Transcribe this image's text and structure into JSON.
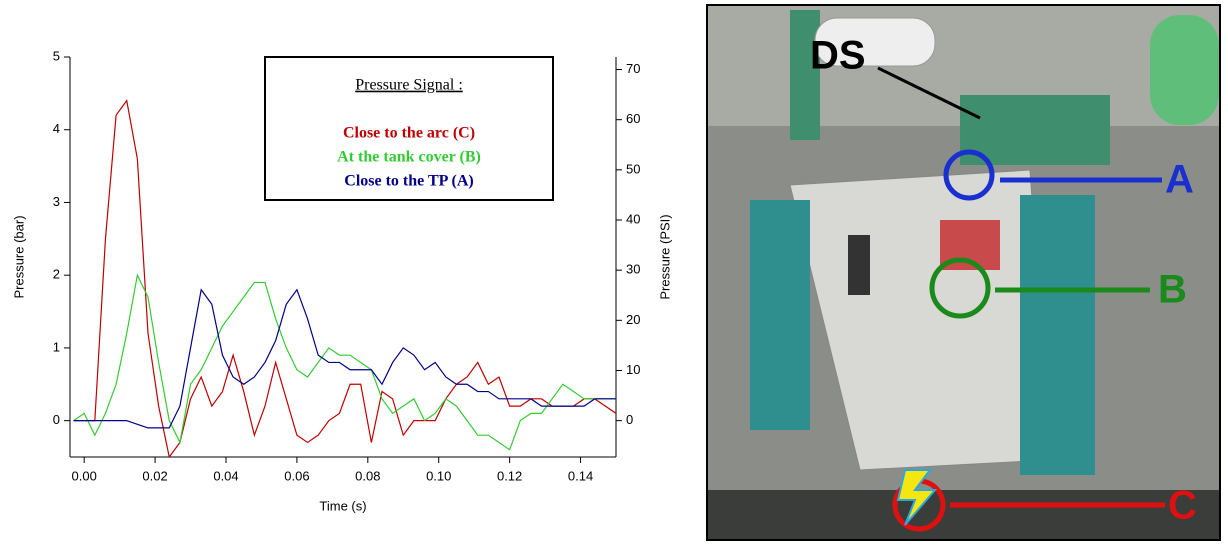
{
  "chart_data": {
    "type": "line",
    "x_label": "Time (s)",
    "y_label": "Pressure (bar)",
    "y2_label": "Pressure (PSI)",
    "legend_title": "Pressure Signal :",
    "x": [
      -0.003,
      0,
      0.003,
      0.006,
      0.009,
      0.012,
      0.015,
      0.018,
      0.021,
      0.024,
      0.027,
      0.03,
      0.033,
      0.036,
      0.039,
      0.042,
      0.045,
      0.048,
      0.051,
      0.054,
      0.057,
      0.06,
      0.063,
      0.066,
      0.069,
      0.072,
      0.075,
      0.078,
      0.081,
      0.084,
      0.087,
      0.09,
      0.093,
      0.096,
      0.099,
      0.102,
      0.105,
      0.108,
      0.111,
      0.114,
      0.117,
      0.12,
      0.123,
      0.126,
      0.129,
      0.132,
      0.135,
      0.138,
      0.141,
      0.144,
      0.147,
      0.15
    ],
    "series": [
      {
        "name": "Close to the arc (C)",
        "color": "#c00000",
        "values": [
          0,
          0,
          0,
          2.5,
          4.2,
          4.4,
          3.6,
          1.2,
          0.2,
          -0.5,
          -0.3,
          0.3,
          0.6,
          0.2,
          0.4,
          0.9,
          0.4,
          -0.2,
          0.2,
          0.8,
          0.3,
          -0.2,
          -0.3,
          -0.2,
          0,
          0.1,
          0.5,
          0.5,
          -0.3,
          0.4,
          0.3,
          -0.2,
          0,
          0,
          0,
          0.3,
          0.5,
          0.6,
          0.8,
          0.5,
          0.6,
          0.2,
          0.2,
          0.3,
          0.3,
          0.2,
          0.2,
          0.2,
          0.3,
          0.3,
          0.2,
          0.1
        ]
      },
      {
        "name": "At the tank cover (B)",
        "color": "#33cc33",
        "values": [
          0,
          0.1,
          -0.2,
          0.1,
          0.5,
          1.2,
          2.0,
          1.7,
          0.8,
          0,
          -0.3,
          0.5,
          0.7,
          1.0,
          1.3,
          1.5,
          1.7,
          1.9,
          1.9,
          1.4,
          1.0,
          0.7,
          0.6,
          0.8,
          1.0,
          0.9,
          0.9,
          0.8,
          0.7,
          0.3,
          0.1,
          0.2,
          0.3,
          0,
          0.1,
          0.3,
          0.2,
          0,
          -0.2,
          -0.2,
          -0.3,
          -0.4,
          0,
          0.1,
          0.1,
          0.3,
          0.5,
          0.4,
          0.3,
          0.3,
          0.3,
          0.3
        ]
      },
      {
        "name": "Close to the TP (A)",
        "color": "#00008b",
        "values": [
          0,
          0,
          0,
          0,
          0,
          0,
          -0.05,
          -0.1,
          -0.1,
          -0.1,
          0.2,
          1.0,
          1.8,
          1.6,
          0.9,
          0.6,
          0.5,
          0.6,
          0.8,
          1.1,
          1.6,
          1.8,
          1.4,
          0.9,
          0.8,
          0.8,
          0.7,
          0.7,
          0.7,
          0.5,
          0.8,
          1.0,
          0.9,
          0.7,
          0.8,
          0.6,
          0.5,
          0.5,
          0.4,
          0.4,
          0.3,
          0.3,
          0.3,
          0.3,
          0.2,
          0.2,
          0.2,
          0.2,
          0.2,
          0.3,
          0.3,
          0.3
        ]
      }
    ],
    "xlim": [
      -0.004,
      0.15
    ],
    "xticks": [
      {
        "value": 0,
        "label": "0.00"
      },
      0.02,
      0.04,
      0.06,
      0.08,
      {
        "value": 0.1,
        "label": "0.10"
      },
      0.12,
      0.14
    ],
    "ylim": [
      -0.5,
      5
    ],
    "yticks": [
      0,
      1,
      2,
      3,
      4,
      5
    ],
    "y2lim": [
      -7.25,
      72.5
    ],
    "y2ticks": [
      0,
      10,
      20,
      30,
      40,
      50,
      60,
      70
    ]
  },
  "photo": {
    "labels": {
      "ds": "DS",
      "a": "A",
      "b": "B",
      "c": "C"
    }
  }
}
